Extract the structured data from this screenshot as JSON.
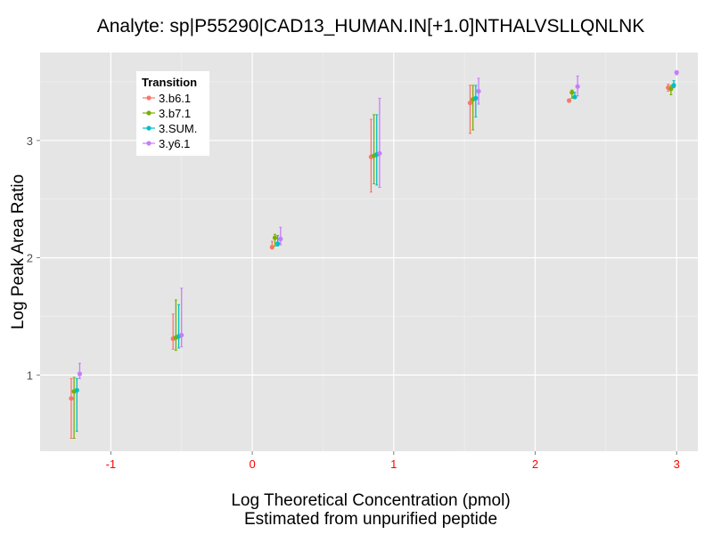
{
  "chart_data": {
    "type": "scatter",
    "title": "Analyte: sp|P55290|CAD13_HUMAN.IN[+1.0]NTHALVSLLQNLNK",
    "xlabel": [
      "Log Theoretical Concentration (pmol)",
      "Estimated from unpurified peptide"
    ],
    "ylabel": "Log Peak Area Ratio",
    "xlim": [
      -1.5,
      3.15
    ],
    "ylim": [
      0.35,
      3.75
    ],
    "xticks": [
      -1,
      0,
      1,
      2,
      3
    ],
    "xtick_labels": [
      "-1",
      "0",
      "1",
      "2",
      "3"
    ],
    "yticks": [
      1,
      2,
      3
    ],
    "ytick_labels": [
      "1",
      "2",
      "3"
    ],
    "grid": true,
    "legend": {
      "title": "Transition",
      "position": "top-left"
    },
    "error_bars": true,
    "colors": {
      "panel": "#e5e5e5",
      "grid_major": "#ffffff",
      "grid_minor": "#f2f2f2",
      "x_axis_text": "#ff0000"
    },
    "series": [
      {
        "name": "3.b6.1",
        "color": "#f8766d",
        "points": [
          {
            "x": -1.28,
            "y": 0.8,
            "lo": 0.46,
            "hi": 0.97
          },
          {
            "x": -0.56,
            "y": 1.31,
            "lo": 1.22,
            "hi": 1.52
          },
          {
            "x": 0.14,
            "y": 2.09,
            "lo": 2.08,
            "hi": 2.14
          },
          {
            "x": 0.84,
            "y": 2.86,
            "lo": 2.56,
            "hi": 3.18
          },
          {
            "x": 1.54,
            "y": 3.32,
            "lo": 3.06,
            "hi": 3.47
          },
          {
            "x": 2.24,
            "y": 3.34,
            "lo": 3.33,
            "hi": 3.35
          },
          {
            "x": 2.94,
            "y": 3.45,
            "lo": 3.42,
            "hi": 3.48
          }
        ]
      },
      {
        "name": "3.b7.1",
        "color": "#7cae00",
        "points": [
          {
            "x": -1.26,
            "y": 0.86,
            "lo": 0.46,
            "hi": 0.98
          },
          {
            "x": -0.54,
            "y": 1.32,
            "lo": 1.21,
            "hi": 1.64
          },
          {
            "x": 0.16,
            "y": 2.17,
            "lo": 2.1,
            "hi": 2.2
          },
          {
            "x": 0.86,
            "y": 2.87,
            "lo": 2.63,
            "hi": 3.22
          },
          {
            "x": 1.56,
            "y": 3.35,
            "lo": 3.09,
            "hi": 3.47
          },
          {
            "x": 2.26,
            "y": 3.41,
            "lo": 3.36,
            "hi": 3.43
          },
          {
            "x": 2.96,
            "y": 3.44,
            "lo": 3.39,
            "hi": 3.47
          }
        ]
      },
      {
        "name": "3.SUM.",
        "color": "#00bfc4",
        "points": [
          {
            "x": -1.24,
            "y": 0.87,
            "lo": 0.52,
            "hi": 0.97
          },
          {
            "x": -0.52,
            "y": 1.33,
            "lo": 1.23,
            "hi": 1.6
          },
          {
            "x": 0.18,
            "y": 2.12,
            "lo": 2.1,
            "hi": 2.19
          },
          {
            "x": 0.88,
            "y": 2.88,
            "lo": 2.62,
            "hi": 3.22
          },
          {
            "x": 1.58,
            "y": 3.36,
            "lo": 3.2,
            "hi": 3.47
          },
          {
            "x": 2.28,
            "y": 3.37,
            "lo": 3.36,
            "hi": 3.41
          },
          {
            "x": 2.98,
            "y": 3.47,
            "lo": 3.45,
            "hi": 3.51
          }
        ]
      },
      {
        "name": "3.y6.1",
        "color": "#c77cff",
        "points": [
          {
            "x": -1.22,
            "y": 1.01,
            "lo": 0.97,
            "hi": 1.1
          },
          {
            "x": -0.5,
            "y": 1.34,
            "lo": 1.24,
            "hi": 1.74
          },
          {
            "x": 0.2,
            "y": 2.16,
            "lo": 2.11,
            "hi": 2.26
          },
          {
            "x": 0.9,
            "y": 2.89,
            "lo": 2.6,
            "hi": 3.36
          },
          {
            "x": 1.6,
            "y": 3.42,
            "lo": 3.31,
            "hi": 3.53
          },
          {
            "x": 2.3,
            "y": 3.46,
            "lo": 3.38,
            "hi": 3.55
          },
          {
            "x": 3.0,
            "y": 3.58,
            "lo": 3.56,
            "hi": 3.59
          }
        ]
      }
    ]
  }
}
